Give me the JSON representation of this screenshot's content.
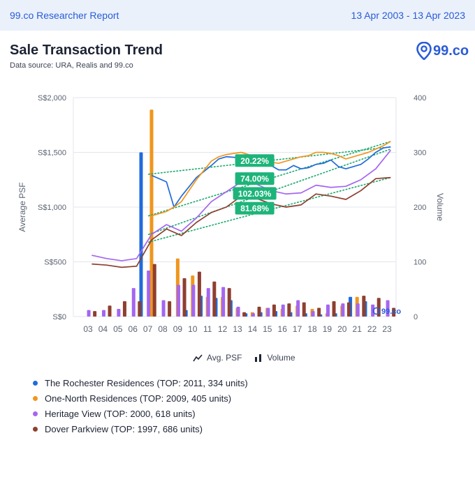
{
  "header": {
    "report_title": "99.co Researcher Report",
    "date_range": "13 Apr 2003 - 13 Apr 2023"
  },
  "page": {
    "title": "Sale Transaction Trend",
    "subtitle": "Data source: URA, Realis and 99.co",
    "logo_text": "99.co"
  },
  "chart_legend": {
    "psf_label": "Avg. PSF",
    "volume_label": "Volume"
  },
  "watermark": "99.co",
  "chart_data": {
    "type": "bar+line",
    "title": "Sale Transaction Trend",
    "ylabel": "Average PSF",
    "y2label": "Volume",
    "ylim": [
      0,
      2000
    ],
    "y2lim": [
      0,
      400
    ],
    "y_ticks": [
      "S$0",
      "S$500",
      "S$1,000",
      "S$1,500",
      "S$2,000"
    ],
    "y2_ticks": [
      "0",
      "100",
      "200",
      "300",
      "400"
    ],
    "categories": [
      "03",
      "04",
      "05",
      "06",
      "07",
      "08",
      "09",
      "10",
      "11",
      "12",
      "13",
      "14",
      "15",
      "16",
      "17",
      "18",
      "19",
      "20",
      "21",
      "22",
      "23"
    ],
    "series": [
      {
        "name": "The Rochester Residences (TOP: 2011, 334 units)",
        "color": "#1f6bdb",
        "psf_x": [
          6.75,
          7.25,
          8.25,
          8.75,
          9.25,
          10.25,
          11.25,
          11.75,
          12.25,
          13.25,
          13.75,
          14.25,
          14.75,
          15.25,
          15.75,
          16.25,
          16.75,
          17.25,
          17.75,
          18.25,
          18.75,
          19.25,
          19.75,
          20.25,
          20.75,
          21.25,
          21.75,
          22.25,
          22.75,
          23.25
        ],
        "psf": [
          null,
          1290,
          1230,
          1000,
          1100,
          1270,
          1380,
          1440,
          1460,
          1450,
          1420,
          1430,
          1400,
          1380,
          1340,
          1340,
          1380,
          1350,
          1360,
          1390,
          1400,
          1430,
          1370,
          1350,
          1370,
          1390,
          1440,
          1500,
          1540,
          1550
        ],
        "vol_x": [
          6.55,
          9.55,
          10.55,
          11.55,
          12.55,
          13.55,
          14.55,
          15.55,
          16.55,
          17.55,
          18.55,
          19.55,
          20.55,
          21.55
        ],
        "volume": [
          300,
          12,
          38,
          34,
          30,
          6,
          8,
          10,
          8,
          6,
          4,
          6,
          36,
          28
        ]
      },
      {
        "name": "One-North Residences (TOP: 2009, 405 units)",
        "color": "#f0961d",
        "psf_x": [
          7.25,
          7.75,
          8.25,
          8.75,
          9.25,
          10.25,
          11.25,
          11.75,
          12.25,
          13.25,
          13.75,
          14.25,
          14.75,
          15.25,
          15.75,
          16.25,
          16.75,
          17.25,
          17.75,
          18.25,
          18.75,
          19.25,
          19.75,
          20.25,
          20.75,
          21.25,
          21.75,
          22.25,
          22.75,
          23.25
        ],
        "psf": [
          920,
          940,
          960,
          1000,
          1050,
          1250,
          1420,
          1460,
          1480,
          1500,
          1480,
          1450,
          1420,
          1410,
          1400,
          1420,
          1440,
          1460,
          1470,
          1500,
          1500,
          1490,
          1470,
          1440,
          1460,
          1480,
          1500,
          1530,
          1560,
          1600
        ],
        "vol_x": [
          7.25,
          9.0,
          10.0,
          11.0,
          12.0,
          13.0,
          14.0,
          15.0,
          16.0,
          17.0,
          18.0,
          19.0,
          20.0,
          21.0
        ],
        "volume": [
          378,
          106,
          75,
          36,
          36,
          16,
          8,
          16,
          14,
          20,
          14,
          6,
          20,
          36
        ]
      },
      {
        "name": "Heritage View (TOP: 2000, 618 units)",
        "color": "#a466f0",
        "psf_x": [
          3.25,
          4.25,
          5.25,
          6.25,
          7.25,
          8.25,
          9.25,
          10.25,
          11.25,
          12.25,
          13.25,
          14.25,
          15.25,
          16.25,
          17.25,
          18.25,
          19.25,
          20.25,
          21.25,
          22.25,
          23.25
        ],
        "psf": [
          560,
          530,
          510,
          530,
          750,
          840,
          780,
          900,
          1050,
          1140,
          1230,
          1210,
          1150,
          1120,
          1130,
          1200,
          1180,
          1190,
          1250,
          1350,
          1520
        ],
        "vol_x": [
          3.05,
          4.05,
          5.05,
          6.05,
          7.05,
          8.05,
          9.05,
          10.05,
          11.05,
          12.05,
          13.05,
          14.05,
          15.05,
          16.05,
          17.05,
          18.05,
          19.05,
          20.05,
          21.05,
          22.05,
          23.05
        ],
        "volume": [
          12,
          12,
          14,
          52,
          84,
          30,
          58,
          58,
          52,
          54,
          18,
          6,
          16,
          22,
          30,
          10,
          22,
          24,
          24,
          22,
          30
        ]
      },
      {
        "name": "Dover Parkview (TOP: 1997, 686 units)",
        "color": "#8e3f2f",
        "psf_x": [
          3.25,
          4.25,
          5.25,
          6.25,
          7.25,
          8.25,
          9.25,
          10.25,
          11.25,
          12.25,
          13.25,
          14.25,
          15.25,
          16.25,
          17.25,
          18.25,
          19.25,
          20.25,
          21.25,
          22.25,
          23.25
        ],
        "psf": [
          480,
          470,
          450,
          460,
          700,
          800,
          740,
          860,
          950,
          1000,
          1100,
          1080,
          1030,
          1000,
          1020,
          1120,
          1100,
          1070,
          1150,
          1260,
          1270
        ],
        "vol_x": [
          3.45,
          4.45,
          5.45,
          6.45,
          7.45,
          8.45,
          9.45,
          10.45,
          11.45,
          12.45,
          13.45,
          14.45,
          15.45,
          16.45,
          17.45,
          18.45,
          19.45,
          20.45,
          21.45,
          22.45,
          23.45
        ],
        "volume": [
          10,
          20,
          28,
          28,
          96,
          28,
          70,
          82,
          64,
          52,
          8,
          18,
          22,
          24,
          26,
          16,
          28,
          26,
          38,
          34,
          16
        ]
      }
    ],
    "trendlines": [
      {
        "series": 0,
        "x": [
          7.05,
          23.25
        ],
        "y": [
          1300,
          1550
        ]
      },
      {
        "series": 1,
        "x": [
          7.05,
          23.25
        ],
        "y": [
          920,
          1600
        ]
      },
      {
        "series": 2,
        "x": [
          7.05,
          23.25
        ],
        "y": [
          750,
          1530
        ]
      },
      {
        "series": 3,
        "x": [
          7.05,
          23.25
        ],
        "y": [
          680,
          1270
        ]
      }
    ],
    "annotations": [
      {
        "text": "20.22%",
        "x": 14.15,
        "y": 1425
      },
      {
        "text": "74.00%",
        "x": 14.15,
        "y": 1260
      },
      {
        "text": "102.03%",
        "x": 14.15,
        "y": 1125
      },
      {
        "text": "81.68%",
        "x": 14.15,
        "y": 990
      }
    ]
  }
}
